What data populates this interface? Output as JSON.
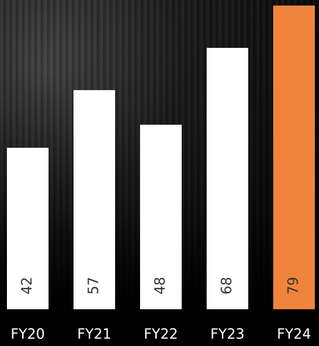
{
  "chart_data": {
    "type": "bar",
    "categories": [
      "FY20",
      "FY21",
      "FY22",
      "FY23",
      "FY24"
    ],
    "values": [
      42,
      57,
      48,
      68,
      79
    ],
    "colors": [
      "#ffffff",
      "#ffffff",
      "#ffffff",
      "#ffffff",
      "#f0843c"
    ]
  }
}
